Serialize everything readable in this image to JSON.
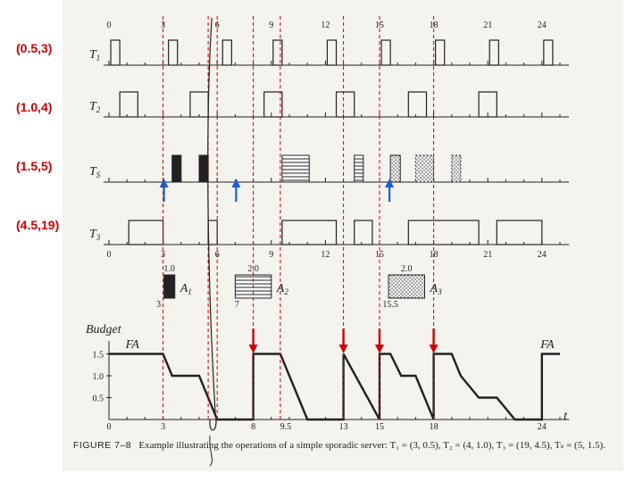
{
  "params": {
    "T1": "(0.5,3)",
    "T2": "(1.0,4)",
    "TS": "(1.5,5)",
    "T3": "(4.5,19)"
  },
  "lanes": [
    {
      "key": "T1",
      "label": "T",
      "sub": "1"
    },
    {
      "key": "T2",
      "label": "T",
      "sub": "2"
    },
    {
      "key": "TS",
      "label": "T",
      "sub": "S"
    },
    {
      "key": "T3",
      "label": "T",
      "sub": "3"
    }
  ],
  "top_ticks": [
    "0",
    "3",
    "6",
    "9",
    "12",
    "15",
    "18",
    "21",
    "24"
  ],
  "mid_ticks": [
    "0",
    "3",
    "6",
    "9",
    "12",
    "15",
    "18",
    "21",
    "24"
  ],
  "budget_ticks": [
    "0",
    "3",
    "8",
    "9.5",
    "13",
    "15",
    "18",
    "24"
  ],
  "budget_y_ticks": [
    "1.5",
    "1.0",
    "0.5"
  ],
  "budget_title": "Budget",
  "fa_left": "FA",
  "fa_right": "FA",
  "t_axis": "t",
  "aperiodic": [
    {
      "name": "A",
      "sub": "1",
      "size": "1.0",
      "release": "3"
    },
    {
      "name": "A",
      "sub": "2",
      "size": "2.0",
      "release": "7"
    },
    {
      "name": "A",
      "sub": "3",
      "size": "2.0",
      "release": "15.5"
    }
  ],
  "caption": {
    "fig": "FIGURE 7–8",
    "text": "Example illustrating the operations of a simple sporadic server: T₁ = (3, 0.5), T₂ = (4, 1.0), T₃ = (19, 4.5), Tₛ = (5, 1.5)."
  },
  "colors": {
    "red": "#cc0000",
    "blue": "#1a5fd6",
    "ink": "#222222"
  }
}
